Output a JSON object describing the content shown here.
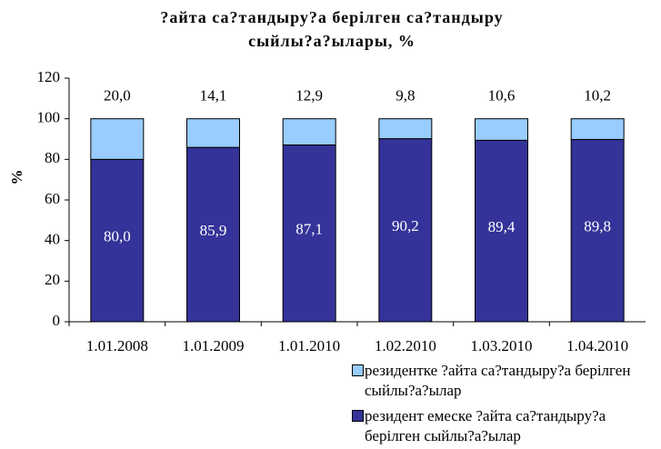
{
  "chart_data": {
    "type": "stacked_bar",
    "title": "?айта са?тандыру?а берілген са?тандыру сыйлы?а?ылары, %",
    "y_label": "%",
    "categories": [
      "1.01.2008",
      "1.01.2009",
      "1.01.2010",
      "1.02.2010",
      "1.03.2010",
      "1.04.2010"
    ],
    "series": [
      {
        "name": "резидент емеске ?айта са?тандыру?а берілген сыйлы?а?ылар",
        "color": "#333399",
        "values": [
          80.0,
          85.9,
          87.1,
          90.2,
          89.4,
          89.8
        ],
        "value_labels": [
          "80,0",
          "85,9",
          "87,1",
          "90,2",
          "89,4",
          "89,8"
        ]
      },
      {
        "name": "резидентке ?айта са?тандыру?а берілген сыйлы?а?ылар",
        "color": "#99ccff",
        "values": [
          20.0,
          14.1,
          12.9,
          9.8,
          10.6,
          10.2
        ],
        "value_labels": [
          "20,0",
          "14,1",
          "12,9",
          "9,8",
          "10,6",
          "10,2"
        ]
      }
    ],
    "ylim": [
      0,
      120
    ],
    "yticks": [
      0,
      20,
      40,
      60,
      80,
      100,
      120
    ],
    "grid": false
  }
}
